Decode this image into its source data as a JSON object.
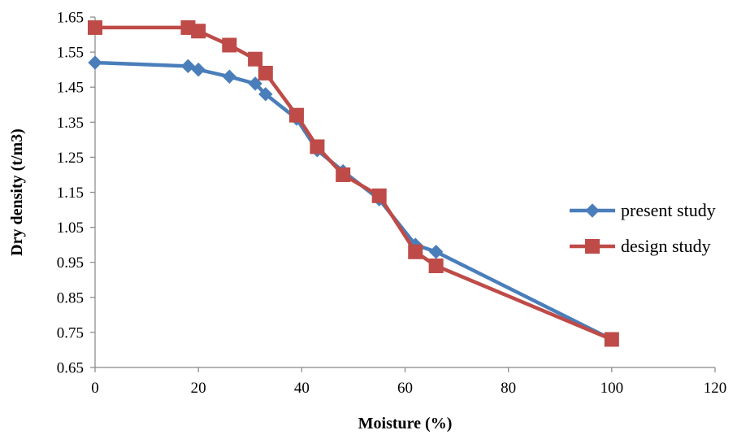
{
  "chart_data": {
    "type": "line",
    "title": "",
    "xlabel": "Moisture (%)",
    "ylabel": "Dry density (t/m3)",
    "xlim": [
      0,
      120
    ],
    "ylim": [
      0.65,
      1.65
    ],
    "xticks": [
      0,
      20,
      40,
      60,
      80,
      100,
      120
    ],
    "yticks": [
      0.65,
      0.75,
      0.85,
      0.95,
      1.05,
      1.15,
      1.25,
      1.35,
      1.45,
      1.55,
      1.65
    ],
    "xtick_labels": [
      "0",
      "20",
      "40",
      "60",
      "80",
      "100",
      "120"
    ],
    "ytick_labels": [
      "0.65",
      "0.75",
      "0.85",
      "0.95",
      "1.05",
      "1.15",
      "1.25",
      "1.35",
      "1.45",
      "1.55",
      "1.65"
    ],
    "grid": false,
    "legend_position": "right",
    "series": [
      {
        "name": "present study",
        "color": "#4A7EBB",
        "marker": "diamond",
        "x": [
          0,
          18,
          20,
          26,
          31,
          33,
          39,
          43,
          48,
          55,
          62,
          66,
          100
        ],
        "y": [
          1.52,
          1.51,
          1.5,
          1.48,
          1.46,
          1.43,
          1.36,
          1.27,
          1.21,
          1.13,
          1.0,
          0.98,
          0.73
        ]
      },
      {
        "name": "design study",
        "color": "#BE4B48",
        "marker": "square",
        "x": [
          0,
          18,
          20,
          26,
          31,
          33,
          39,
          43,
          48,
          55,
          62,
          66,
          100
        ],
        "y": [
          1.62,
          1.62,
          1.61,
          1.57,
          1.53,
          1.49,
          1.37,
          1.28,
          1.2,
          1.14,
          0.98,
          0.94,
          0.73
        ]
      }
    ]
  }
}
